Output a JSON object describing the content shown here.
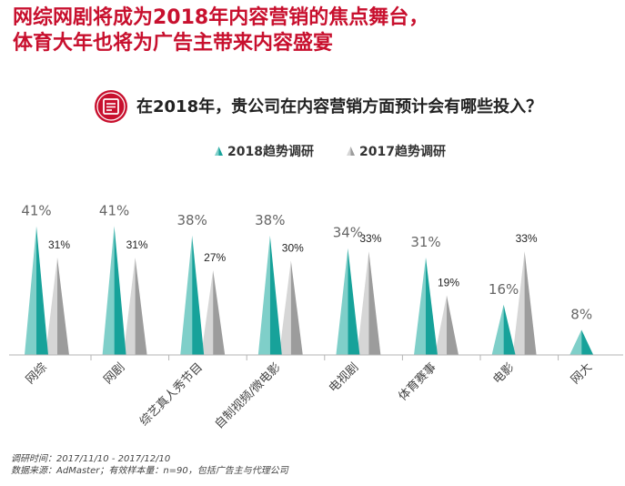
{
  "headline": {
    "line1": "网综网剧将成为2018年内容营销的焦点舞台，",
    "line2": "体育大年也将为广告主带来内容盛宴"
  },
  "question": "在2018年，贵公司在内容营销方面预计会有哪些投入？",
  "legend": {
    "series_2018": "2018趋势调研",
    "series_2017": "2017趋势调研"
  },
  "colors": {
    "title_red": "#c8102e",
    "teal_light": "#7fcfc9",
    "teal_dark": "#17a29a",
    "gray_light": "#d6d6d6",
    "gray_dark": "#9c9c9c"
  },
  "chart_data": {
    "type": "bar",
    "categories": [
      "网综",
      "网剧",
      "综艺真人秀节目",
      "自制视频/微电影",
      "电视剧",
      "体育赛事",
      "电影",
      "网大"
    ],
    "series": [
      {
        "name": "2018趋势调研",
        "values": [
          41,
          41,
          38,
          38,
          34,
          31,
          16,
          8
        ],
        "labels": [
          "41%",
          "41%",
          "38%",
          "38%",
          "34%",
          "31%",
          "16%",
          "8%"
        ]
      },
      {
        "name": "2017趋势调研",
        "values": [
          31,
          31,
          27,
          30,
          33,
          19,
          33,
          null
        ],
        "labels": [
          "31%",
          "31%",
          "27%",
          "30%",
          "33%",
          "19%",
          "33%",
          ""
        ]
      }
    ],
    "title": "在2018年，贵公司在内容营销方面预计会有哪些投入？",
    "xlabel": "",
    "ylabel": "",
    "ylim": [
      0,
      45
    ]
  },
  "source": {
    "line1": "调研时间：2017/11/10 - 2017/12/10",
    "line2": "数据来源：AdMaster；有效样本量：n=90，包括广告主与代理公司"
  }
}
